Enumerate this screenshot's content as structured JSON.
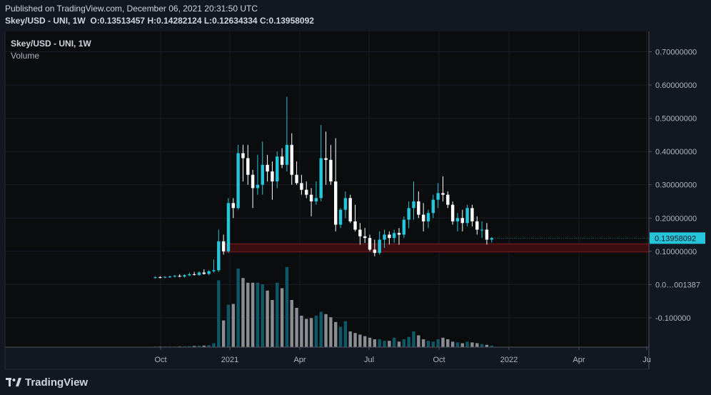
{
  "header": {
    "published": "Published on TradingView.com, December 06, 2021 20:31:50 UTC",
    "symbol": "Skey/USD - UNI, 1W",
    "ohlc": "O:0.13513457 H:0.14282124 L:0.12634334 C:0.13958092"
  },
  "footer": {
    "brand": "TradingView",
    "logo_icon": "tradingview-logo-icon"
  },
  "colors": {
    "background": "#131722",
    "pane": "#0b0c0e",
    "up": "#26c6da",
    "down": "#ffffff",
    "volume_up": "#0e5868",
    "volume_down": "#8a8d93",
    "zone_fill": "#3a0d10",
    "zone_border": "#7a1f24",
    "last_price_label": "#26c6da"
  },
  "chart_data": {
    "type": "candlestick",
    "legend": [
      "Skey/USD - UNI, 1W",
      "Volume"
    ],
    "x_ticks": [
      "Oct",
      "2021",
      "Apr",
      "Jul",
      "Oct",
      "2022",
      "Apr",
      "Ju"
    ],
    "y_ticks": [
      "0.70000000",
      "0.60000000",
      "0.50000000",
      "0.40000000",
      "0.30000000",
      "0.20000000",
      "0.10000000",
      "0.0…001387",
      "-0.100000"
    ],
    "ylim": [
      -0.205,
      0.76
    ],
    "last_price": 0.13958092,
    "last_price_label": "0.13958092",
    "zone": [
      0.098,
      0.122
    ],
    "candles": [
      {
        "o": 0.021,
        "h": 0.024,
        "l": 0.018,
        "c": 0.022
      },
      {
        "o": 0.022,
        "h": 0.025,
        "l": 0.019,
        "c": 0.021
      },
      {
        "o": 0.021,
        "h": 0.025,
        "l": 0.019,
        "c": 0.023
      },
      {
        "o": 0.023,
        "h": 0.027,
        "l": 0.02,
        "c": 0.024
      },
      {
        "o": 0.024,
        "h": 0.029,
        "l": 0.021,
        "c": 0.026
      },
      {
        "o": 0.026,
        "h": 0.031,
        "l": 0.022,
        "c": 0.024
      },
      {
        "o": 0.024,
        "h": 0.031,
        "l": 0.021,
        "c": 0.028
      },
      {
        "o": 0.028,
        "h": 0.036,
        "l": 0.025,
        "c": 0.031
      },
      {
        "o": 0.031,
        "h": 0.038,
        "l": 0.027,
        "c": 0.029
      },
      {
        "o": 0.029,
        "h": 0.04,
        "l": 0.026,
        "c": 0.036
      },
      {
        "o": 0.036,
        "h": 0.046,
        "l": 0.03,
        "c": 0.032
      },
      {
        "o": 0.032,
        "h": 0.043,
        "l": 0.028,
        "c": 0.04
      },
      {
        "o": 0.04,
        "h": 0.075,
        "l": 0.036,
        "c": 0.043
      },
      {
        "o": 0.043,
        "h": 0.165,
        "l": 0.038,
        "c": 0.13
      },
      {
        "o": 0.13,
        "h": 0.15,
        "l": 0.09,
        "c": 0.1
      },
      {
        "o": 0.1,
        "h": 0.26,
        "l": 0.095,
        "c": 0.245
      },
      {
        "o": 0.245,
        "h": 0.26,
        "l": 0.2,
        "c": 0.23
      },
      {
        "o": 0.23,
        "h": 0.42,
        "l": 0.225,
        "c": 0.395
      },
      {
        "o": 0.395,
        "h": 0.42,
        "l": 0.31,
        "c": 0.38
      },
      {
        "o": 0.38,
        "h": 0.42,
        "l": 0.3,
        "c": 0.33
      },
      {
        "o": 0.33,
        "h": 0.345,
        "l": 0.23,
        "c": 0.29
      },
      {
        "o": 0.29,
        "h": 0.39,
        "l": 0.27,
        "c": 0.3
      },
      {
        "o": 0.3,
        "h": 0.43,
        "l": 0.27,
        "c": 0.36
      },
      {
        "o": 0.36,
        "h": 0.39,
        "l": 0.31,
        "c": 0.34
      },
      {
        "o": 0.34,
        "h": 0.37,
        "l": 0.255,
        "c": 0.31
      },
      {
        "o": 0.31,
        "h": 0.4,
        "l": 0.29,
        "c": 0.385
      },
      {
        "o": 0.385,
        "h": 0.41,
        "l": 0.35,
        "c": 0.36
      },
      {
        "o": 0.36,
        "h": 0.565,
        "l": 0.34,
        "c": 0.42
      },
      {
        "o": 0.42,
        "h": 0.455,
        "l": 0.3,
        "c": 0.33
      },
      {
        "o": 0.33,
        "h": 0.37,
        "l": 0.3,
        "c": 0.305
      },
      {
        "o": 0.305,
        "h": 0.33,
        "l": 0.27,
        "c": 0.285
      },
      {
        "o": 0.285,
        "h": 0.31,
        "l": 0.26,
        "c": 0.27
      },
      {
        "o": 0.27,
        "h": 0.29,
        "l": 0.205,
        "c": 0.25
      },
      {
        "o": 0.25,
        "h": 0.31,
        "l": 0.24,
        "c": 0.26
      },
      {
        "o": 0.26,
        "h": 0.48,
        "l": 0.25,
        "c": 0.38
      },
      {
        "o": 0.38,
        "h": 0.46,
        "l": 0.3,
        "c": 0.375
      },
      {
        "o": 0.375,
        "h": 0.42,
        "l": 0.3,
        "c": 0.31
      },
      {
        "o": 0.31,
        "h": 0.44,
        "l": 0.16,
        "c": 0.18
      },
      {
        "o": 0.18,
        "h": 0.23,
        "l": 0.17,
        "c": 0.225
      },
      {
        "o": 0.225,
        "h": 0.28,
        "l": 0.2,
        "c": 0.26
      },
      {
        "o": 0.26,
        "h": 0.27,
        "l": 0.185,
        "c": 0.19
      },
      {
        "o": 0.19,
        "h": 0.24,
        "l": 0.16,
        "c": 0.165
      },
      {
        "o": 0.165,
        "h": 0.185,
        "l": 0.12,
        "c": 0.145
      },
      {
        "o": 0.145,
        "h": 0.17,
        "l": 0.125,
        "c": 0.14
      },
      {
        "o": 0.14,
        "h": 0.15,
        "l": 0.1,
        "c": 0.105
      },
      {
        "o": 0.105,
        "h": 0.135,
        "l": 0.085,
        "c": 0.095
      },
      {
        "o": 0.095,
        "h": 0.16,
        "l": 0.09,
        "c": 0.135
      },
      {
        "o": 0.135,
        "h": 0.165,
        "l": 0.11,
        "c": 0.15
      },
      {
        "o": 0.15,
        "h": 0.16,
        "l": 0.12,
        "c": 0.14
      },
      {
        "o": 0.14,
        "h": 0.165,
        "l": 0.125,
        "c": 0.155
      },
      {
        "o": 0.155,
        "h": 0.17,
        "l": 0.12,
        "c": 0.15
      },
      {
        "o": 0.15,
        "h": 0.205,
        "l": 0.14,
        "c": 0.195
      },
      {
        "o": 0.195,
        "h": 0.25,
        "l": 0.17,
        "c": 0.23
      },
      {
        "o": 0.23,
        "h": 0.31,
        "l": 0.195,
        "c": 0.25
      },
      {
        "o": 0.25,
        "h": 0.28,
        "l": 0.2,
        "c": 0.21
      },
      {
        "o": 0.21,
        "h": 0.245,
        "l": 0.16,
        "c": 0.19
      },
      {
        "o": 0.19,
        "h": 0.225,
        "l": 0.17,
        "c": 0.215
      },
      {
        "o": 0.215,
        "h": 0.27,
        "l": 0.2,
        "c": 0.255
      },
      {
        "o": 0.255,
        "h": 0.305,
        "l": 0.23,
        "c": 0.275
      },
      {
        "o": 0.275,
        "h": 0.325,
        "l": 0.25,
        "c": 0.27
      },
      {
        "o": 0.27,
        "h": 0.28,
        "l": 0.23,
        "c": 0.24
      },
      {
        "o": 0.24,
        "h": 0.25,
        "l": 0.18,
        "c": 0.19
      },
      {
        "o": 0.19,
        "h": 0.215,
        "l": 0.16,
        "c": 0.2
      },
      {
        "o": 0.2,
        "h": 0.225,
        "l": 0.16,
        "c": 0.185
      },
      {
        "o": 0.185,
        "h": 0.24,
        "l": 0.175,
        "c": 0.23
      },
      {
        "o": 0.23,
        "h": 0.24,
        "l": 0.175,
        "c": 0.19
      },
      {
        "o": 0.19,
        "h": 0.205,
        "l": 0.15,
        "c": 0.165
      },
      {
        "o": 0.165,
        "h": 0.19,
        "l": 0.14,
        "c": 0.165
      },
      {
        "o": 0.165,
        "h": 0.185,
        "l": 0.12,
        "c": 0.135
      },
      {
        "o": 0.13513457,
        "h": 0.14282124,
        "l": 0.12634334,
        "c": 0.13958092
      }
    ],
    "volume_relative": [
      0.005,
      0.005,
      0.006,
      0.006,
      0.007,
      0.008,
      0.01,
      0.012,
      0.015,
      0.018,
      0.02,
      0.025,
      0.05,
      0.85,
      0.34,
      0.54,
      0.55,
      1.0,
      0.88,
      0.82,
      0.82,
      0.82,
      0.8,
      0.72,
      0.6,
      0.82,
      0.75,
      1.02,
      0.6,
      0.5,
      0.4,
      0.36,
      0.37,
      0.4,
      0.45,
      0.42,
      0.38,
      0.32,
      0.26,
      0.33,
      0.2,
      0.18,
      0.16,
      0.14,
      0.12,
      0.1,
      0.1,
      0.08,
      0.08,
      0.12,
      0.07,
      0.1,
      0.13,
      0.2,
      0.15,
      0.1,
      0.08,
      0.07,
      0.1,
      0.12,
      0.1,
      0.07,
      0.06,
      0.05,
      0.07,
      0.06,
      0.05,
      0.04,
      0.03,
      0.02
    ]
  }
}
